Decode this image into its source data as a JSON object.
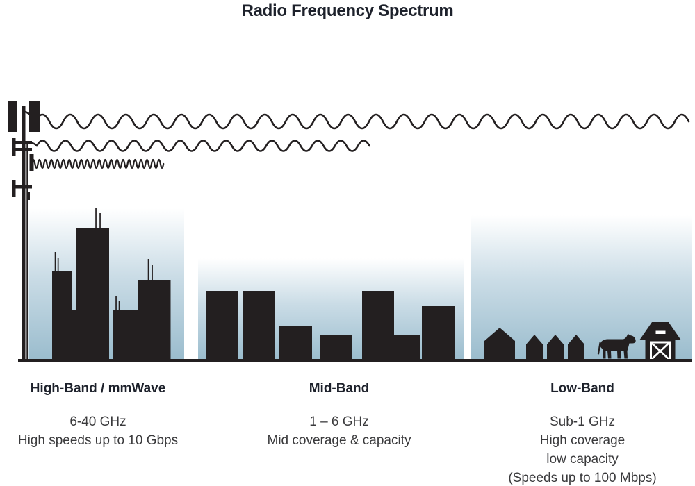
{
  "title": "Radio Frequency Spectrum",
  "bands": [
    {
      "name": "High-Band / mmWave",
      "frequency": "6-40 GHz",
      "details": [
        "High speeds up to 10 Gbps"
      ],
      "illustration": "dense-city-skyline-with-antennas",
      "wave_reach": "shortest"
    },
    {
      "name": "Mid-Band",
      "frequency": "1 – 6 GHz",
      "details": [
        "Mid coverage & capacity"
      ],
      "illustration": "mid-rise-buildings",
      "wave_reach": "medium"
    },
    {
      "name": "Low-Band",
      "frequency": "Sub-1 GHz",
      "details": [
        "High coverage",
        "low capacity",
        "(Speeds up to 100 Mbps)"
      ],
      "illustration": "rural-houses-cow-and-barn",
      "wave_reach": "longest"
    }
  ],
  "colors": {
    "ink": "#231f20",
    "sky": "#9abccd",
    "title_text": "#1d212b",
    "body_text": "#3a3a3c",
    "background": "#ffffff"
  }
}
